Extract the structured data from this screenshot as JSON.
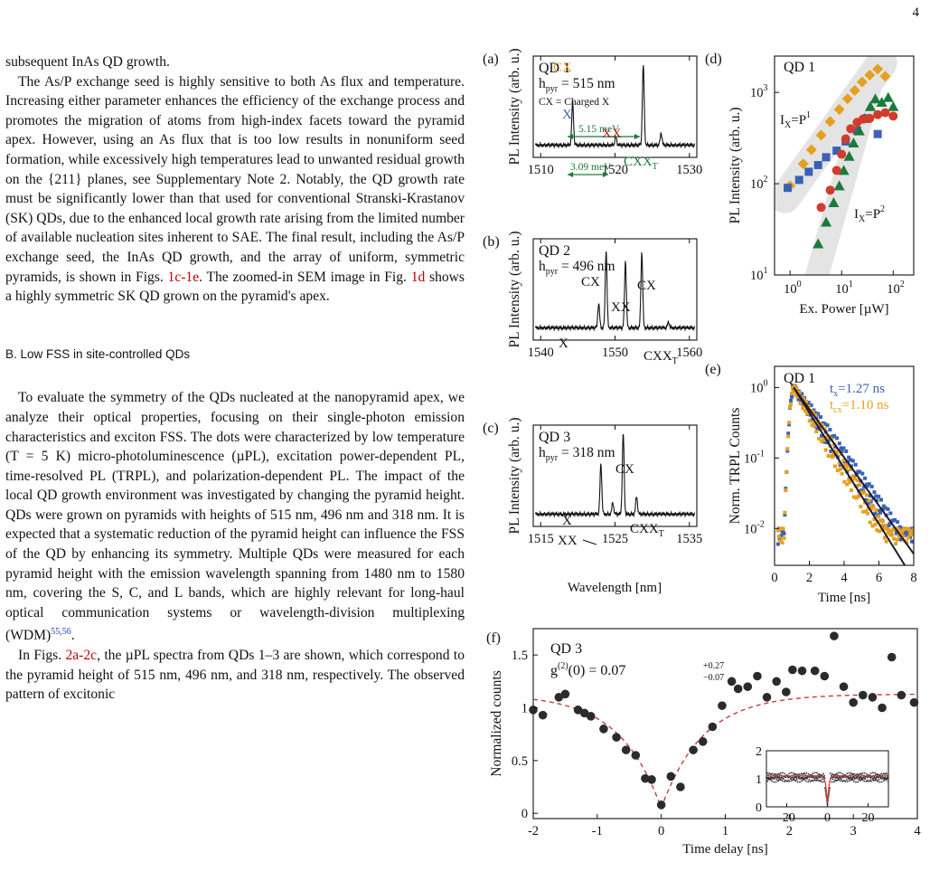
{
  "page_number": "4",
  "left_column": {
    "p0": "subsequent InAs QD growth.",
    "p1": "The As/P exchange seed is highly sensitive to both As flux and temperature. Increasing either parameter enhances the efficiency of the exchange process and promotes the migration of atoms from high-index facets toward the pyramid apex. However, using an As flux that is too low results in nonuniform seed formation, while excessively high temperatures lead to unwanted residual growth on the {211} planes, see Supplementary Note 2. Notably, the QD growth rate must be significantly lower than that used for conventional Stranski-Krastanov (SK) QDs, due to the enhanced local growth rate arising from the limited number of available nucleation sites inherent to SAE. The final result, including the As/P exchange seed, the InAs QD growth, and the array of uniform, symmetric pyramids, is shown in Figs.",
    "p1_ref1": "1c-1e",
    "p1_mid": ". The zoomed-in SEM image in Fig.",
    "p1_ref2": "1d",
    "p1_end": "shows a highly symmetric SK QD grown on the pyramid's apex.",
    "section_heading": "B.   Low FSS in site-controlled QDs",
    "p2": "To evaluate the symmetry of the QDs nucleated at the nanopyramid apex, we analyze their optical properties, focusing on their single-photon emission characteristics and exciton FSS. The dots were characterized by low temperature (T = 5 K) micro-photoluminescence (µPL), excitation power-dependent PL, time-resolved PL (TRPL), and polarization-dependent PL. The impact of the local QD growth environment was investigated by changing the pyramid height. QDs were grown on pyramids with heights of 515 nm, 496 nm and 318 nm. It is expected that a systematic reduction of the pyramid height can influence the FSS of the QD by enhancing its symmetry. Multiple QDs were measured for each pyramid height with the emission wavelength spanning from 1480 nm to 1580 nm, covering the S, C, and L bands, which are highly relevant for long-haul optical communication systems or wavelength-division multiplexing (WDM)",
    "p2_cite": "55,56",
    "p3_start": "In Figs.",
    "p3_ref": "2a-2c",
    "p3_rest": ", the µPL spectra from QDs 1–3 are shown, which correspond to the pyramid height of 515 nm, 496 nm, and 318 nm, respectively. The observed pattern of excitonic"
  },
  "figure": {
    "panel_labels": [
      "(a)",
      "(b)",
      "(c)",
      "(d)",
      "(e)",
      "(f)"
    ],
    "pl_ylabel": "PL Intensity (arb. u.)",
    "pl_xlabel": "Wavelength [nm]",
    "qd1": "QD 1",
    "qd2": "QD 2",
    "qd3": "QD 3",
    "hpyr_a": " = 515 nm",
    "hpyr_b": " = 496 nm",
    "hpyr_c": " = 318 nm",
    "cx_note": "CX = Charged X",
    "peak_x": "X",
    "peak_cx": "CX",
    "peak_xx": "XX",
    "peak_cxx": "CXX",
    "peak_cxx_sub": "T",
    "energy1": "5.15 meV",
    "energy2": "3.09 meV",
    "d_xlabel": "Ex. Power [µW]",
    "d_ylabel": "PL Intensity (arb. u.)",
    "d_fit1": "=P",
    "d_fit1_exp": "1",
    "d_fit2": "=P",
    "d_fit2_exp": "2",
    "e_ylabel": "Norm. TRPL Counts",
    "e_xlabel": "Time [ns]",
    "e_tx": "=1.27 ns",
    "e_tcx": "=1.10 ns",
    "f_ylabel": "Normalized counts",
    "f_xlabel": "Time delay [ns]",
    "f_g2": "g",
    "f_g2_value": "(0) = 0.07",
    "f_g2_up": "+0.27",
    "f_g2_down": "−0.07",
    "colors": {
      "blue": "#3a62b4",
      "orange": "#e6a021",
      "green": "#1c7a3c",
      "red": "#d23c2c",
      "gray_band": "#e4e4e4",
      "dark_point": "#2b2b2b",
      "fit_red": "#c93a3a"
    }
  },
  "chart_data": [
    {
      "panel": "(a)",
      "type": "line",
      "xlim": [
        1509,
        1531
      ],
      "ylim": [
        0,
        1
      ],
      "x_ticks": [
        "1510",
        "1520",
        "1530"
      ],
      "peaks": [
        {
          "label": "X",
          "x": 1514.3,
          "height": 0.53
        },
        {
          "label": "XX",
          "x": 1520.1,
          "height": 0.1
        },
        {
          "label": "CX",
          "x": 1523.8,
          "height": 1.0
        },
        {
          "label": "CXX_T",
          "x": 1526.2,
          "height": 0.15
        }
      ],
      "annotations": [
        "5.15 meV",
        "3.09 meV",
        "CX = Charged X"
      ]
    },
    {
      "panel": "(b)",
      "type": "line",
      "xlim": [
        1539,
        1561
      ],
      "ylim": [
        0,
        1
      ],
      "x_ticks": [
        "1540",
        "1550",
        "1560"
      ],
      "peaks": [
        {
          "label": "X",
          "x": 1547.8,
          "height": 0.3
        },
        {
          "label": "CX",
          "x": 1548.8,
          "height": 0.95
        },
        {
          "label": "XX",
          "x": 1551.4,
          "height": 0.82
        },
        {
          "label": "CX",
          "x": 1553.6,
          "height": 0.93
        },
        {
          "label": "CXX_T",
          "x": 1557.2,
          "height": 0.07
        }
      ]
    },
    {
      "panel": "(c)",
      "type": "line",
      "xlim": [
        1514,
        1536
      ],
      "ylim": [
        0,
        1
      ],
      "x_ticks": [
        "1515",
        "1525",
        "1535"
      ],
      "xlabel": "Wavelength [nm]",
      "peaks": [
        {
          "label": "X",
          "x": 1523.1,
          "height": 0.62
        },
        {
          "label": "XX",
          "x": 1524.7,
          "height": 0.14
        },
        {
          "label": "CX",
          "x": 1526.1,
          "height": 1.0
        },
        {
          "label": "CXX_T",
          "x": 1527.9,
          "height": 0.22
        }
      ]
    },
    {
      "panel": "(d)",
      "type": "scatter",
      "x_scale": "log",
      "y_scale": "log",
      "xlim": [
        0.5,
        250
      ],
      "ylim": [
        10,
        2500
      ],
      "xlabel": "Ex. Power [µW]",
      "ylabel": "PL Intensity (arb. u.)",
      "annotations": [
        "I_X=P^1",
        "I_X=P^2"
      ],
      "series": [
        {
          "marker": "diamond",
          "color": "#e6a021",
          "x": [
            1,
            1.8,
            2.6,
            4,
            6,
            9,
            13,
            18,
            25,
            35,
            50,
            70
          ],
          "y": [
            95,
            165,
            235,
            340,
            480,
            650,
            850,
            1050,
            1300,
            1550,
            1800,
            1500
          ]
        },
        {
          "marker": "square",
          "color": "#3a62b4",
          "x": [
            0.9,
            1.5,
            2.3,
            3.5,
            5,
            8,
            12,
            20,
            30,
            50
          ],
          "y": [
            90,
            110,
            135,
            160,
            195,
            230,
            290,
            380,
            520,
            350
          ]
        },
        {
          "marker": "triangle",
          "color": "#1c7a3c",
          "x": [
            3.5,
            5,
            7,
            9,
            11,
            14,
            17,
            22,
            28,
            36,
            45,
            60,
            80,
            100
          ],
          "y": [
            22,
            38,
            62,
            95,
            140,
            200,
            280,
            380,
            520,
            700,
            850,
            780,
            880,
            700
          ]
        },
        {
          "marker": "circle",
          "color": "#d23c2c",
          "x": [
            4,
            6,
            8,
            10,
            12,
            15,
            20,
            26,
            35,
            50,
            70,
            100
          ],
          "y": [
            55,
            85,
            140,
            210,
            310,
            400,
            470,
            510,
            520,
            570,
            600,
            550
          ]
        }
      ]
    },
    {
      "panel": "(e)",
      "type": "scatter",
      "y_scale": "log",
      "xlim": [
        0,
        8
      ],
      "ylim": [
        0.003,
        2
      ],
      "xlabel": "Time [ns]",
      "ylabel": "Norm. TRPL Counts",
      "series": [
        {
          "name": "t_x",
          "lifetime_ns": 1.27,
          "color": "#3a62b4",
          "peak_time_ns": 1.1
        },
        {
          "name": "t_cx",
          "lifetime_ns": 1.1,
          "color": "#e6a021",
          "peak_time_ns": 1.1
        }
      ]
    },
    {
      "panel": "(f)",
      "type": "scatter",
      "xlim": [
        -2,
        4
      ],
      "ylim": [
        -0.05,
        1.75
      ],
      "xlabel": "Time delay [ns]",
      "ylabel": "Normalized counts",
      "x": [
        -2,
        -1.85,
        -1.6,
        -1.5,
        -1.3,
        -1.2,
        -1.1,
        -0.9,
        -0.7,
        -0.55,
        -0.4,
        -0.25,
        -0.15,
        0,
        0.15,
        0.3,
        0.5,
        0.65,
        0.8,
        0.95,
        1.1,
        1.2,
        1.35,
        1.5,
        1.65,
        1.8,
        1.95,
        2.05,
        2.2,
        2.4,
        2.55,
        2.7,
        2.85,
        3.0,
        3.15,
        3.3,
        3.45,
        3.6,
        3.75,
        3.95
      ],
      "y": [
        0.98,
        0.93,
        1.1,
        1.13,
        0.98,
        0.95,
        0.92,
        0.8,
        0.72,
        0.6,
        0.55,
        0.33,
        0.32,
        0.08,
        0.35,
        0.25,
        0.6,
        0.68,
        0.82,
        1.02,
        1.25,
        1.18,
        1.2,
        1.3,
        1.1,
        1.25,
        1.15,
        1.36,
        1.35,
        1.35,
        1.3,
        1.68,
        1.2,
        1.05,
        1.12,
        1.1,
        1.0,
        1.48,
        1.12,
        1.05
      ],
      "fit": "dashed red",
      "inset": {
        "xlim": [
          -30,
          30
        ],
        "ylim": [
          0,
          2
        ],
        "x_ticks": [
          "-20",
          "0",
          "20"
        ],
        "y_ticks": [
          "0",
          "1",
          "2"
        ]
      }
    }
  ]
}
